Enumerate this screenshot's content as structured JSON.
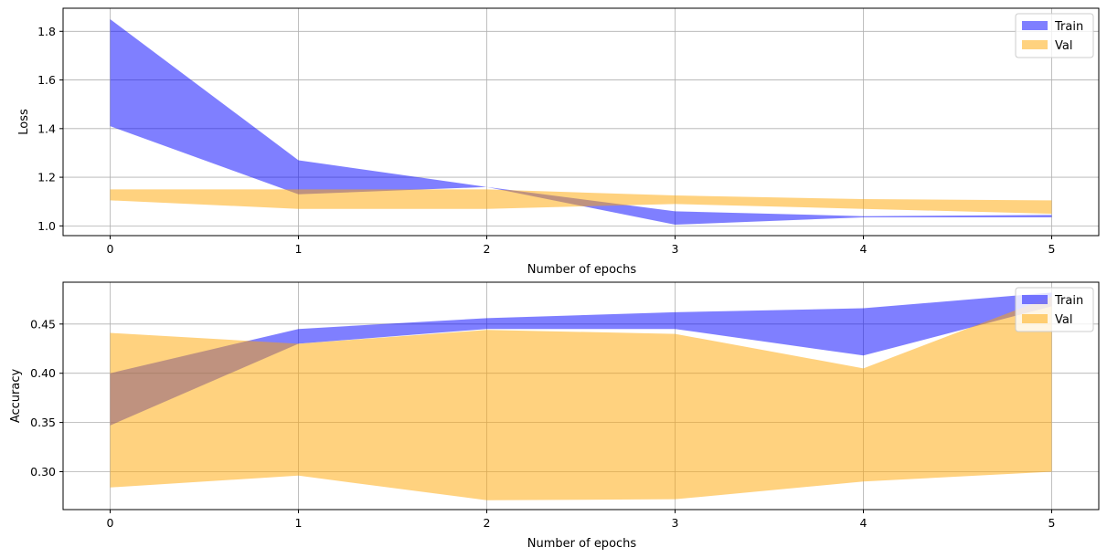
{
  "chart_data": [
    {
      "type": "area",
      "xlabel": "Number of epochs",
      "ylabel": "Loss",
      "x": [
        0,
        1,
        2,
        3,
        4,
        5
      ],
      "xticks": [
        "0",
        "1",
        "2",
        "3",
        "4",
        "5"
      ],
      "xlim": [
        -0.25,
        5.25
      ],
      "ylim": [
        0.96,
        1.895
      ],
      "yticks": [
        "1.0",
        "1.2",
        "1.4",
        "1.6",
        "1.8"
      ],
      "ytick_values": [
        1.0,
        1.2,
        1.4,
        1.6,
        1.8
      ],
      "grid": true,
      "legend_position": "upper right",
      "series": [
        {
          "name": "Train",
          "color": "#0000ff",
          "opacity": 0.5,
          "lower": [
            1.41,
            1.13,
            1.16,
            1.005,
            1.035,
            1.035
          ],
          "upper": [
            1.85,
            1.27,
            1.16,
            1.06,
            1.04,
            1.045
          ]
        },
        {
          "name": "Val",
          "color": "#ffa500",
          "opacity": 0.5,
          "lower": [
            1.105,
            1.07,
            1.07,
            1.09,
            1.07,
            1.05
          ],
          "upper": [
            1.15,
            1.15,
            1.15,
            1.125,
            1.11,
            1.105
          ]
        }
      ]
    },
    {
      "type": "area",
      "xlabel": "Number of epochs",
      "ylabel": "Accuracy",
      "x": [
        0,
        1,
        2,
        3,
        4,
        5
      ],
      "xticks": [
        "0",
        "1",
        "2",
        "3",
        "4",
        "5"
      ],
      "xlim": [
        -0.25,
        5.25
      ],
      "ylim": [
        0.2615,
        0.4925
      ],
      "yticks": [
        "0.30",
        "0.35",
        "0.40",
        "0.45"
      ],
      "ytick_values": [
        0.3,
        0.35,
        0.4,
        0.45
      ],
      "grid": true,
      "legend_position": "upper right",
      "series": [
        {
          "name": "Train",
          "color": "#0000ff",
          "opacity": 0.5,
          "lower": [
            0.347,
            0.43,
            0.445,
            0.445,
            0.418,
            0.468
          ],
          "upper": [
            0.4,
            0.445,
            0.456,
            0.462,
            0.466,
            0.482
          ]
        },
        {
          "name": "Val",
          "color": "#ffa500",
          "opacity": 0.5,
          "lower": [
            0.284,
            0.296,
            0.271,
            0.272,
            0.29,
            0.3
          ],
          "upper": [
            0.441,
            0.43,
            0.444,
            0.44,
            0.405,
            0.478
          ]
        }
      ]
    }
  ]
}
